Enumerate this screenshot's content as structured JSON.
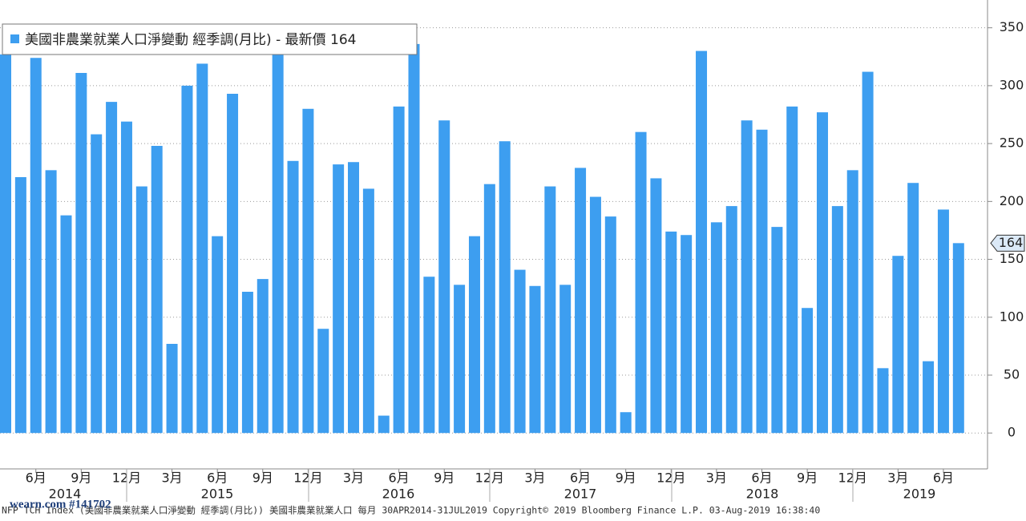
{
  "chart_data": {
    "type": "bar",
    "series": [
      {
        "name": "美國非農業就業人口淨變動 經季調(月比) - 最新價 164",
        "color": "#3d9ef0",
        "values": [
          327,
          221,
          324,
          227,
          188,
          311,
          258,
          286,
          269,
          213,
          248,
          77,
          300,
          319,
          170,
          293,
          122,
          133,
          339,
          235,
          280,
          90,
          232,
          234,
          211,
          15,
          282,
          336,
          135,
          270,
          128,
          170,
          215,
          252,
          141,
          127,
          213,
          128,
          229,
          204,
          187,
          18,
          260,
          220,
          174,
          171,
          330,
          182,
          196,
          270,
          262,
          178,
          282,
          108,
          277,
          196,
          227,
          312,
          56,
          153,
          216,
          62,
          193,
          164
        ]
      }
    ],
    "categories": [
      null,
      null,
      "6月",
      null,
      null,
      "9月",
      null,
      null,
      "12月",
      null,
      null,
      "3月",
      null,
      null,
      "6月",
      null,
      null,
      "9月",
      null,
      null,
      "12月",
      null,
      null,
      "3月",
      null,
      null,
      "6月",
      null,
      null,
      "9月",
      null,
      null,
      "12月",
      null,
      null,
      "3月",
      null,
      null,
      "6月",
      null,
      null,
      "9月",
      null,
      null,
      "12月",
      null,
      null,
      "3月",
      null,
      null,
      "6月",
      null,
      null,
      "9月",
      null,
      null,
      "12月",
      null,
      null,
      "3月",
      null,
      null,
      "6月",
      null
    ],
    "years": [
      "2014",
      "2015",
      "2016",
      "2017",
      "2018",
      "2019"
    ],
    "ylim": [
      -31,
      374
    ],
    "yticks": [
      0,
      50,
      100,
      150,
      200,
      250,
      300,
      350
    ],
    "grid": true,
    "footer": "NFP TCH Index (美國非農業就業人口淨變動 經季調(月比)) 美國非農業就業人口  每月 30APR2014-31JUL2019  Copyright© 2019 Bloomberg Finance L.P.  03-Aug-2019 16:38:40",
    "watermark": "wearn.com #141702"
  }
}
